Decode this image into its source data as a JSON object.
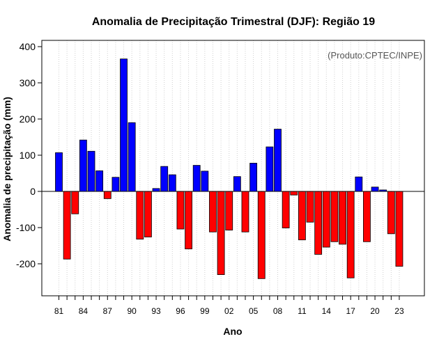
{
  "chart_data": {
    "type": "bar",
    "title": "Anomalia de Precipitação Trimestral (DJF): Região 19",
    "xlabel": "Ano",
    "ylabel": "Anomalia de precipitação (mm)",
    "credit": "(Produto:CPTEC/INPE)",
    "ylim": [
      -290,
      420
    ],
    "yticks": [
      -200,
      -100,
      0,
      100,
      200,
      300,
      400
    ],
    "ytick_labels": [
      "-200",
      "-100",
      "0",
      "100",
      "200",
      "300",
      "400"
    ],
    "xtick_labels": [
      "81",
      "84",
      "87",
      "90",
      "93",
      "96",
      "99",
      "02",
      "05",
      "08",
      "11",
      "14",
      "17",
      "20",
      "23"
    ],
    "grid": true,
    "positive_color": "#0000ff",
    "negative_color": "#ff0000",
    "categories": [
      "1981",
      "1982",
      "1983",
      "1984",
      "1985",
      "1986",
      "1987",
      "1988",
      "1989",
      "1990",
      "1991",
      "1992",
      "1993",
      "1994",
      "1995",
      "1996",
      "1997",
      "1998",
      "1999",
      "2000",
      "2001",
      "2002",
      "2003",
      "2004",
      "2005",
      "2006",
      "2007",
      "2008",
      "2009",
      "2010",
      "2011",
      "2012",
      "2013",
      "2014",
      "2015",
      "2016",
      "2017",
      "2018",
      "2019",
      "2020",
      "2021",
      "2022",
      "2023"
    ],
    "values": [
      107,
      -187,
      -62,
      142,
      111,
      57,
      -20,
      39,
      366,
      190,
      -132,
      -126,
      8,
      69,
      46,
      -104,
      -159,
      72,
      56,
      -112,
      -230,
      -107,
      41,
      -112,
      78,
      -241,
      123,
      172,
      -101,
      -10,
      -134,
      -85,
      -174,
      -154,
      -139,
      -146,
      -239,
      40,
      -139,
      12,
      4,
      -117,
      -207
    ]
  }
}
